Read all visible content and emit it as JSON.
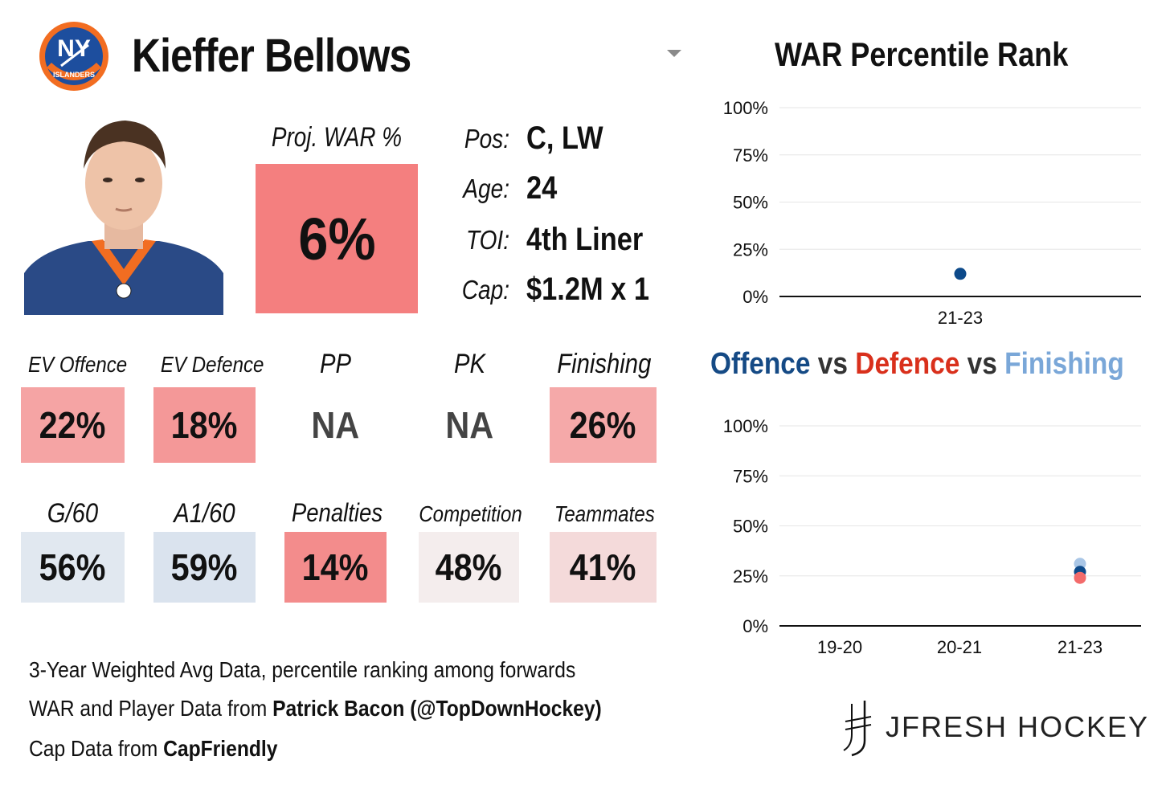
{
  "header": {
    "player_name": "Kieffer Bellows",
    "team_logo_icon": "ny-islanders-logo-icon",
    "dropdown_icon": "dropdown-arrow-icon"
  },
  "projection": {
    "label": "Proj. WAR %",
    "value": "6%",
    "color": "#f47f7f"
  },
  "info": [
    {
      "key": "Pos:",
      "value": "C, LW"
    },
    {
      "key": "Age:",
      "value": "24"
    },
    {
      "key": "TOI:",
      "value": "4th Liner"
    },
    {
      "key": "Cap:",
      "value": "$1.2M x 1"
    }
  ],
  "stats_row1": [
    {
      "label": "EV Offence",
      "value": "22%",
      "color": "#f5a4a4"
    },
    {
      "label": "EV Defence",
      "value": "18%",
      "color": "#f49898"
    },
    {
      "label": "PP",
      "value": "NA",
      "color": ""
    },
    {
      "label": "PK",
      "value": "NA",
      "color": ""
    },
    {
      "label": "Finishing",
      "value": "26%",
      "color": "#f5a9a9"
    }
  ],
  "stats_row2": [
    {
      "label": "G/60",
      "value": "56%",
      "color": "#e1e8f0"
    },
    {
      "label": "A1/60",
      "value": "59%",
      "color": "#dae3ee"
    },
    {
      "label": "Penalties",
      "value": "14%",
      "color": "#f38c8c"
    },
    {
      "label": "Competition",
      "value": "48%",
      "color": "#f4eded"
    },
    {
      "label": "Teammates",
      "value": "41%",
      "color": "#f4dada"
    }
  ],
  "footer": {
    "line1": "3-Year Weighted Avg Data, percentile ranking among forwards",
    "line2_prefix": "WAR and Player Data from ",
    "line2_bold": "Patrick Bacon (@TopDownHockey)",
    "line3_prefix": "Cap Data from ",
    "line3_bold": "CapFriendly"
  },
  "brand": {
    "name": "JFRESH HOCKEY",
    "icon": "jfresh-logo-icon"
  },
  "chart_titles": {
    "war": "WAR Percentile Rank",
    "ovd_offence": "Offence",
    "ovd_vs1": " vs ",
    "ovd_defence": "Defence",
    "ovd_vs2": " vs ",
    "ovd_finishing": "Finishing"
  },
  "chart_data": [
    {
      "type": "scatter",
      "title": "WAR Percentile Rank",
      "categories": [
        "21-23"
      ],
      "ylim": [
        0,
        100
      ],
      "yticks": [
        "100%",
        "75%",
        "50%",
        "25%",
        "0%"
      ],
      "grid": true,
      "series": [
        {
          "values": [
            12
          ],
          "color": "#0d4a8a"
        }
      ]
    },
    {
      "type": "scatter",
      "title": "Offence vs Defence vs Finishing",
      "categories": [
        "19-20",
        "20-21",
        "21-23"
      ],
      "ylim": [
        0,
        100
      ],
      "yticks": [
        "100%",
        "75%",
        "50%",
        "25%",
        "0%"
      ],
      "grid": true,
      "series": [
        {
          "name": "Finishing",
          "values": [
            null,
            null,
            31
          ],
          "color": "#a9c6e6"
        },
        {
          "name": "Offence",
          "values": [
            null,
            null,
            27
          ],
          "color": "#0d4a8a"
        },
        {
          "name": "Defence",
          "values": [
            null,
            null,
            24
          ],
          "color": "#f36b6b"
        }
      ]
    }
  ]
}
